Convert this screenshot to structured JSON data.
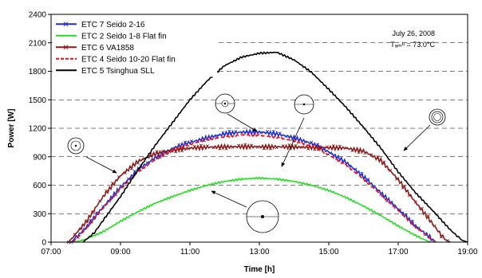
{
  "chart_data": {
    "type": "line",
    "xlabel": "Time [h]",
    "ylabel": "Power  [W]",
    "x_ticks": [
      "07:00",
      "09:00",
      "11:00",
      "13:00",
      "15:00",
      "17:00",
      "19:00"
    ],
    "y_ticks": [
      "0",
      "300",
      "600",
      "900",
      "1200",
      "1500",
      "1800",
      "2100",
      "2400"
    ],
    "xlim": [
      "07:00",
      "19:00"
    ],
    "ylim": [
      0,
      2400
    ],
    "grid": "horizontal dashed",
    "legend_position": "top-left",
    "annotation": {
      "date": "July 26, 2008",
      "temp": "Tₐₘᵇ = 73.0°C"
    },
    "series": [
      {
        "name": "ETC 7 Seido 2-16",
        "color": "#1f2fd8",
        "style": "solid-markers",
        "points": [
          [
            "07:35",
            0
          ],
          [
            "08:00",
            150
          ],
          [
            "08:30",
            370
          ],
          [
            "09:00",
            580
          ],
          [
            "09:30",
            760
          ],
          [
            "10:00",
            890
          ],
          [
            "10:30",
            985
          ],
          [
            "11:00",
            1050
          ],
          [
            "11:30",
            1100
          ],
          [
            "12:00",
            1140
          ],
          [
            "12:30",
            1160
          ],
          [
            "13:00",
            1160
          ],
          [
            "13:30",
            1140
          ],
          [
            "14:00",
            1100
          ],
          [
            "14:30",
            1040
          ],
          [
            "15:00",
            950
          ],
          [
            "15:30",
            840
          ],
          [
            "16:00",
            690
          ],
          [
            "16:30",
            520
          ],
          [
            "17:00",
            350
          ],
          [
            "17:30",
            170
          ],
          [
            "18:00",
            30
          ],
          [
            "18:05",
            0
          ]
        ]
      },
      {
        "name": "ETC 2 Seido 1-8 Flat fin",
        "color": "#22dd22",
        "style": "solid",
        "points": [
          [
            "07:40",
            0
          ],
          [
            "08:00",
            30
          ],
          [
            "08:30",
            110
          ],
          [
            "09:00",
            220
          ],
          [
            "09:30",
            320
          ],
          [
            "10:00",
            410
          ],
          [
            "10:30",
            480
          ],
          [
            "11:00",
            545
          ],
          [
            "11:30",
            600
          ],
          [
            "12:00",
            640
          ],
          [
            "12:30",
            665
          ],
          [
            "13:00",
            675
          ],
          [
            "13:30",
            665
          ],
          [
            "14:00",
            640
          ],
          [
            "14:30",
            600
          ],
          [
            "15:00",
            545
          ],
          [
            "15:30",
            470
          ],
          [
            "16:00",
            380
          ],
          [
            "16:30",
            280
          ],
          [
            "17:00",
            170
          ],
          [
            "17:30",
            70
          ],
          [
            "17:55",
            0
          ]
        ]
      },
      {
        "name": "ETC 6 VA1858",
        "color": "#8b1a1a",
        "style": "solid-markers",
        "points": [
          [
            "07:30",
            0
          ],
          [
            "08:00",
            210
          ],
          [
            "08:30",
            480
          ],
          [
            "09:00",
            700
          ],
          [
            "09:30",
            850
          ],
          [
            "10:00",
            930
          ],
          [
            "10:30",
            970
          ],
          [
            "11:00",
            990
          ],
          [
            "11:30",
            1000
          ],
          [
            "12:00",
            1005
          ],
          [
            "12:30",
            1005
          ],
          [
            "13:00",
            1005
          ],
          [
            "13:30",
            1005
          ],
          [
            "14:00",
            1000
          ],
          [
            "14:30",
            1000
          ],
          [
            "15:00",
            995
          ],
          [
            "15:30",
            990
          ],
          [
            "16:00",
            960
          ],
          [
            "16:30",
            860
          ],
          [
            "17:00",
            660
          ],
          [
            "17:30",
            420
          ],
          [
            "18:00",
            190
          ],
          [
            "18:20",
            30
          ],
          [
            "18:30",
            0
          ]
        ]
      },
      {
        "name": "ETC 4 Seido 10-20 Flat fin",
        "color": "#ee1111",
        "style": "dashed",
        "points": [
          [
            "07:38",
            0
          ],
          [
            "08:00",
            140
          ],
          [
            "08:30",
            360
          ],
          [
            "09:00",
            560
          ],
          [
            "09:30",
            740
          ],
          [
            "10:00",
            870
          ],
          [
            "10:30",
            965
          ],
          [
            "11:00",
            1030
          ],
          [
            "11:30",
            1080
          ],
          [
            "12:00",
            1110
          ],
          [
            "12:30",
            1130
          ],
          [
            "13:00",
            1125
          ],
          [
            "13:30",
            1105
          ],
          [
            "14:00",
            1065
          ],
          [
            "14:30",
            1010
          ],
          [
            "15:00",
            920
          ],
          [
            "15:30",
            810
          ],
          [
            "16:00",
            665
          ],
          [
            "16:30",
            500
          ],
          [
            "17:00",
            335
          ],
          [
            "17:30",
            160
          ],
          [
            "18:00",
            20
          ],
          [
            "18:05",
            0
          ]
        ]
      },
      {
        "name": "ETC 5 Tsinghua SLL",
        "color": "#000000",
        "style": "solid",
        "points": [
          [
            "07:55",
            0
          ],
          [
            "08:15",
            100
          ],
          [
            "08:30",
            230
          ],
          [
            "09:00",
            480
          ],
          [
            "09:30",
            760
          ],
          [
            "10:00",
            1020
          ],
          [
            "10:30",
            1260
          ],
          [
            "11:00",
            1500
          ],
          [
            "11:30",
            1700
          ],
          [
            "12:00",
            1860
          ],
          [
            "12:30",
            1950
          ],
          [
            "13:00",
            1990
          ],
          [
            "13:30",
            2000
          ],
          [
            "14:00",
            1920
          ],
          [
            "14:30",
            1790
          ],
          [
            "15:00",
            1610
          ],
          [
            "15:30",
            1420
          ],
          [
            "16:00",
            1210
          ],
          [
            "16:30",
            990
          ],
          [
            "17:00",
            740
          ],
          [
            "17:30",
            520
          ],
          [
            "18:00",
            330
          ],
          [
            "18:30",
            130
          ],
          [
            "18:50",
            20
          ],
          [
            "19:00",
            0
          ]
        ]
      }
    ]
  }
}
